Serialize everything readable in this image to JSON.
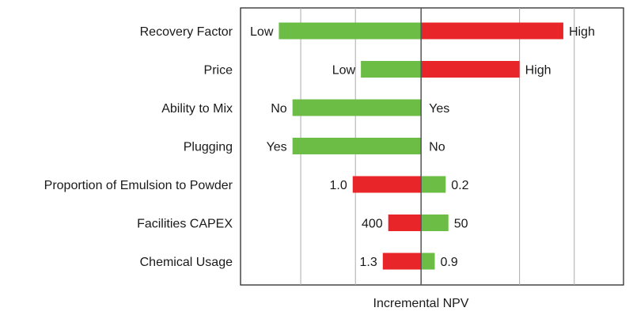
{
  "chart_data": {
    "type": "tornado",
    "title": "",
    "xlabel": "Incremental NPV",
    "ylabel": "",
    "baseline": 0,
    "xlim": [
      -3.3,
      3.7
    ],
    "grid": "vertical",
    "gridlines": [
      -2.2,
      -1.2,
      1.8,
      2.8
    ],
    "x_tick_labels": "none",
    "colors": {
      "increase": "#6cbd45",
      "decrease": "#e8262a",
      "baseline": "#555555",
      "grid": "#aaaaaa"
    },
    "rows": [
      {
        "category": "Recovery Factor",
        "left": {
          "value": -2.6,
          "label": "Low",
          "color": "#6cbd45"
        },
        "right": {
          "value": 2.6,
          "label": "High",
          "color": "#e8262a"
        }
      },
      {
        "category": "Price",
        "left": {
          "value": -1.1,
          "label": "Low",
          "color": "#6cbd45"
        },
        "right": {
          "value": 1.8,
          "label": "High",
          "color": "#e8262a"
        }
      },
      {
        "category": "Ability to Mix",
        "left": {
          "value": -2.35,
          "label": "No",
          "color": "#6cbd45"
        },
        "right": {
          "value": 0,
          "label": "Yes",
          "color": "#6cbd45"
        }
      },
      {
        "category": "Plugging",
        "left": {
          "value": -2.35,
          "label": "Yes",
          "color": "#6cbd45"
        },
        "right": {
          "value": 0,
          "label": "No",
          "color": "#6cbd45"
        }
      },
      {
        "category": "Proportion of Emulsion to Powder",
        "left": {
          "value": -1.25,
          "label": "1.0",
          "color": "#e8262a"
        },
        "right": {
          "value": 0.45,
          "label": "0.2",
          "color": "#6cbd45"
        }
      },
      {
        "category": "Facilities CAPEX",
        "left": {
          "value": -0.6,
          "label": "400",
          "color": "#e8262a"
        },
        "right": {
          "value": 0.5,
          "label": "50",
          "color": "#6cbd45"
        }
      },
      {
        "category": "Chemical Usage",
        "left": {
          "value": -0.7,
          "label": "1.3",
          "color": "#e8262a"
        },
        "right": {
          "value": 0.25,
          "label": "0.9",
          "color": "#6cbd45"
        }
      }
    ]
  }
}
